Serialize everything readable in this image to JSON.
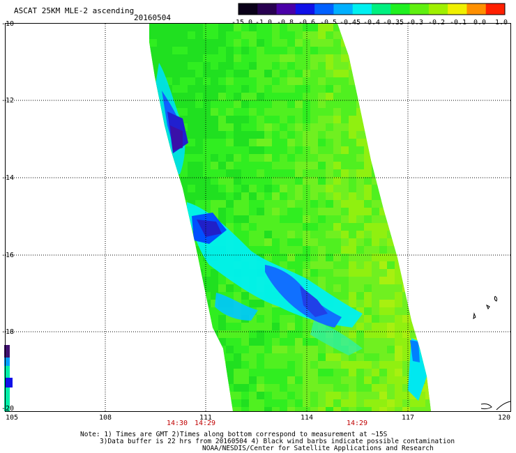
{
  "header": {
    "product": "ASCAT 25KM MLE-2 ascending",
    "date": "20160504"
  },
  "colorbar": {
    "labels": [
      "-15.0",
      "-1.0",
      "-0.8",
      "-0.6",
      "-0.5",
      "-0.45",
      "-0.4",
      "-0.35",
      "-0.3",
      "-0.2",
      "-0.1",
      "0.0",
      "1.0"
    ],
    "colors": [
      "#0a0018",
      "#280050",
      "#4a00a8",
      "#1010e8",
      "#0060ff",
      "#00b0ff",
      "#00f0f0",
      "#00f080",
      "#20f020",
      "#60f010",
      "#a0f000",
      "#f0f000",
      "#ff9000",
      "#ff2000"
    ]
  },
  "map": {
    "lon_ticks": [
      "105",
      "108",
      "111",
      "114",
      "117",
      "120"
    ],
    "lat_ticks": [
      "-10",
      "-12",
      "-14",
      "-16",
      "-18",
      "-20"
    ],
    "times": [
      "14:30",
      "14:29",
      "14:29"
    ],
    "swath_colors": [
      "#20e020",
      "#30ee20",
      "#50f020",
      "#70f020",
      "#90f010",
      "#a8f010"
    ]
  },
  "notes": {
    "line1": "Note: 1) Times are GMT 2)Times along bottom correspond to measurement at ~15S",
    "line2": "3)Data buffer is 22 hrs from 20160504 4) Black wind barbs indicate possible contamination",
    "line3": "NOAA/NESDIS/Center for Satellite Applications and Research"
  }
}
